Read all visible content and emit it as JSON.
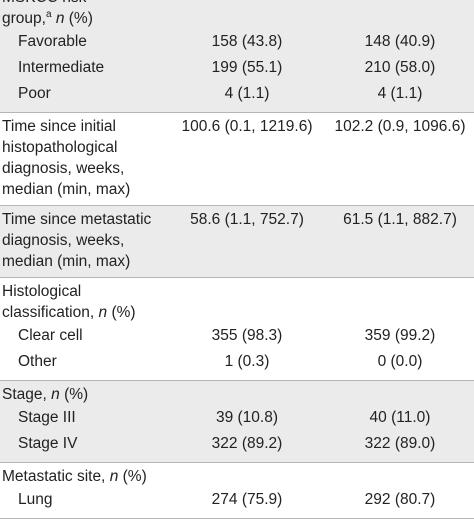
{
  "table": {
    "groups": [
      {
        "label": [
          {
            "text": "MSKCC risk"
          },
          {
            "text": "group,",
            "sup": "a",
            "italic": "n",
            "tail": "(%)"
          }
        ],
        "values": [
          "",
          ""
        ],
        "rows": [
          {
            "label": "Favorable",
            "values": [
              "158 (43.8)",
              "148 (40.9)"
            ]
          },
          {
            "label": "Intermediate",
            "values": [
              "199 (55.1)",
              "210 (58.0)"
            ]
          },
          {
            "label": "Poor",
            "values": [
              "4 (1.1)",
              "4 (1.1)"
            ]
          }
        ]
      },
      {
        "label": [
          {
            "text": "Time since initial"
          },
          {
            "text": "histopathological"
          },
          {
            "text": "diagnosis, weeks,"
          },
          {
            "text": "median (min, max)"
          }
        ],
        "values": [
          "100.6 (0.1, 1219.6)",
          "102.2 (0.9, 1096.6)"
        ],
        "rows": []
      },
      {
        "label": [
          {
            "text": "Time since metastatic"
          },
          {
            "text": "diagnosis, weeks,"
          },
          {
            "text": "median (min, max)"
          }
        ],
        "values": [
          "58.6 (1.1, 752.7)",
          "61.5 (1.1, 882.7)"
        ],
        "rows": []
      },
      {
        "label": [
          {
            "text": "Histological"
          },
          {
            "text": "classification,",
            "italic": "n",
            "tail": "(%)"
          }
        ],
        "values": [
          "",
          ""
        ],
        "rows": [
          {
            "label": "Clear cell",
            "values": [
              "355 (98.3)",
              "359 (99.2)"
            ]
          },
          {
            "label": "Other",
            "values": [
              "1 (0.3)",
              "0 (0.0)"
            ]
          }
        ]
      },
      {
        "label": [
          {
            "text": "Stage,",
            "italic": "n",
            "tail": "(%)"
          }
        ],
        "values": [
          "",
          ""
        ],
        "rows": [
          {
            "label": "Stage III",
            "values": [
              "39 (10.8)",
              "40 (11.0)"
            ]
          },
          {
            "label": "Stage IV",
            "values": [
              "322 (89.2)",
              "322 (89.0)"
            ]
          }
        ]
      },
      {
        "label": [
          {
            "text": "Metastatic site,",
            "italic": "n",
            "tail": "(%)"
          }
        ],
        "values": [
          "",
          ""
        ],
        "rows": [
          {
            "label": "Lung",
            "values": [
              "274 (75.9)",
              "292 (80.7)"
            ]
          }
        ]
      }
    ]
  }
}
